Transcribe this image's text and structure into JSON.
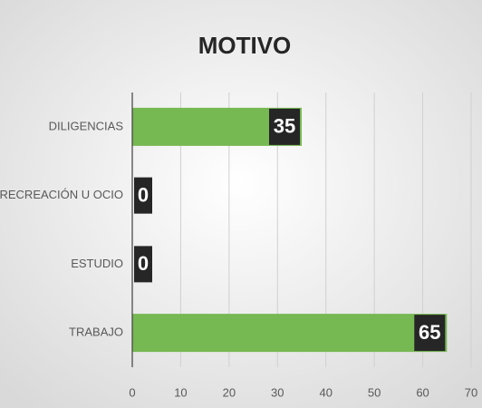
{
  "chart_data": {
    "type": "bar",
    "orientation": "horizontal",
    "title": "MOTIVO",
    "categories": [
      "DILIGENCIAS",
      "RECREACIÓN U OCIO",
      "ESTUDIO",
      "TRABAJO"
    ],
    "values": [
      35,
      0,
      0,
      65
    ],
    "color": "#76b852",
    "xlim": [
      0,
      70
    ],
    "xticks": [
      0,
      10,
      20,
      30,
      40,
      50,
      60,
      70
    ],
    "grid": true
  }
}
